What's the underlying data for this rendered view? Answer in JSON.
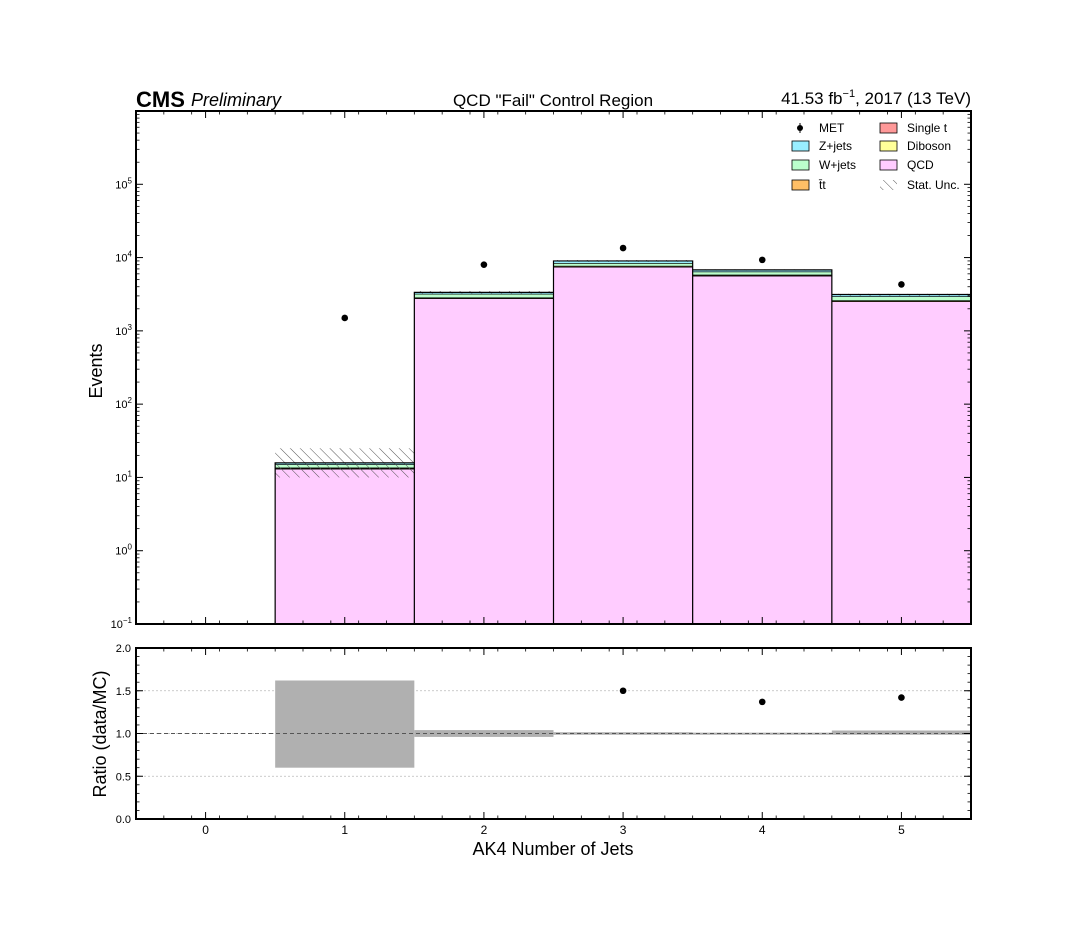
{
  "header": {
    "experiment": "CMS",
    "status": "Preliminary",
    "title": "QCD \"Fail\" Control Region",
    "lumi_value": "41.53 fb",
    "lumi_exponent": "−1",
    "lumi_suffix": ", 2017 (13 TeV)"
  },
  "chart_data": [
    {
      "type": "bar",
      "stacked": true,
      "title": "QCD \"Fail\" Control Region",
      "xlabel": "",
      "ylabel": "Events",
      "xlim": [
        -0.5,
        5.5
      ],
      "ylim": [
        0.1,
        1000000
      ],
      "yscale": "log",
      "categories": [
        0,
        1,
        2,
        3,
        4,
        5
      ],
      "x_ticks": [
        "0",
        "1",
        "2",
        "3",
        "4",
        "5"
      ],
      "y_ticks": [
        {
          "value": 0.1,
          "base": "10",
          "exp": "−1"
        },
        {
          "value": 1,
          "base": "10",
          "exp": "0"
        },
        {
          "value": 10,
          "base": "10",
          "exp": "1"
        },
        {
          "value": 100,
          "base": "10",
          "exp": "2"
        },
        {
          "value": 1000,
          "base": "10",
          "exp": "3"
        },
        {
          "value": 10000,
          "base": "10",
          "exp": "4"
        },
        {
          "value": 100000,
          "base": "10",
          "exp": "5"
        }
      ],
      "series": [
        {
          "name": "QCD",
          "color": "#ffccff",
          "values": [
            0,
            13,
            2750,
            7400,
            5600,
            2500
          ]
        },
        {
          "name": "Single t",
          "color": "#ff9999",
          "values": [
            0,
            0.1,
            10,
            40,
            30,
            15
          ]
        },
        {
          "name": "t̄t",
          "color": "#ffbf66",
          "values": [
            0,
            0.3,
            60,
            180,
            140,
            60
          ]
        },
        {
          "name": "Diboson",
          "color": "#ffff99",
          "values": [
            0,
            0.1,
            10,
            30,
            20,
            10
          ]
        },
        {
          "name": "W+jets",
          "color": "#bbffcc",
          "values": [
            0,
            1.5,
            350,
            700,
            600,
            350
          ]
        },
        {
          "name": "Z+jets",
          "color": "#99eeff",
          "values": [
            0,
            0.8,
            170,
            650,
            400,
            200
          ]
        }
      ],
      "stat_unc": {
        "name": "Stat. Unc.",
        "bins": [
          {
            "x": 1,
            "low": 10,
            "high": 25
          },
          {
            "x": 2,
            "low": 3200,
            "high": 3500
          },
          {
            "x": 3,
            "low": 8750,
            "high": 9250
          },
          {
            "x": 4,
            "low": 6650,
            "high": 6900
          },
          {
            "x": 5,
            "low": 3000,
            "high": 3200
          }
        ]
      },
      "data": {
        "name": "MET",
        "points": [
          {
            "x": 1,
            "y": 1500
          },
          {
            "x": 2,
            "y": 8000
          },
          {
            "x": 3,
            "y": 13500
          },
          {
            "x": 4,
            "y": 9300
          },
          {
            "x": 5,
            "y": 4300
          }
        ]
      },
      "legend": {
        "position": "top-right",
        "columns": 2,
        "entries": [
          "MET",
          "Z+jets",
          "W+jets",
          "t̄t",
          "Single t",
          "Diboson",
          "QCD",
          "Stat. Unc."
        ]
      },
      "grid": false
    },
    {
      "type": "scatter",
      "title": "",
      "xlabel": "AK4 Number of Jets",
      "ylabel": "Ratio (data/MC)",
      "xlim": [
        -0.5,
        5.5
      ],
      "ylim": [
        0.0,
        2.0
      ],
      "x_ticks": [
        "0",
        "1",
        "2",
        "3",
        "4",
        "5"
      ],
      "y_ticks": [
        "0.0",
        "0.5",
        "1.0",
        "1.5",
        "2.0"
      ],
      "grid": true,
      "reference_line": 1.0,
      "points": [
        {
          "x": 3,
          "y": 1.5
        },
        {
          "x": 4,
          "y": 1.37
        },
        {
          "x": 5,
          "y": 1.42
        }
      ],
      "mc_unc_band": [
        {
          "x": 1,
          "low": 0.6,
          "high": 1.62
        },
        {
          "x": 2,
          "low": 0.96,
          "high": 1.04
        },
        {
          "x": 3,
          "low": 0.985,
          "high": 1.015
        },
        {
          "x": 4,
          "low": 0.985,
          "high": 1.01
        },
        {
          "x": 5,
          "low": 0.985,
          "high": 1.035
        }
      ]
    }
  ]
}
